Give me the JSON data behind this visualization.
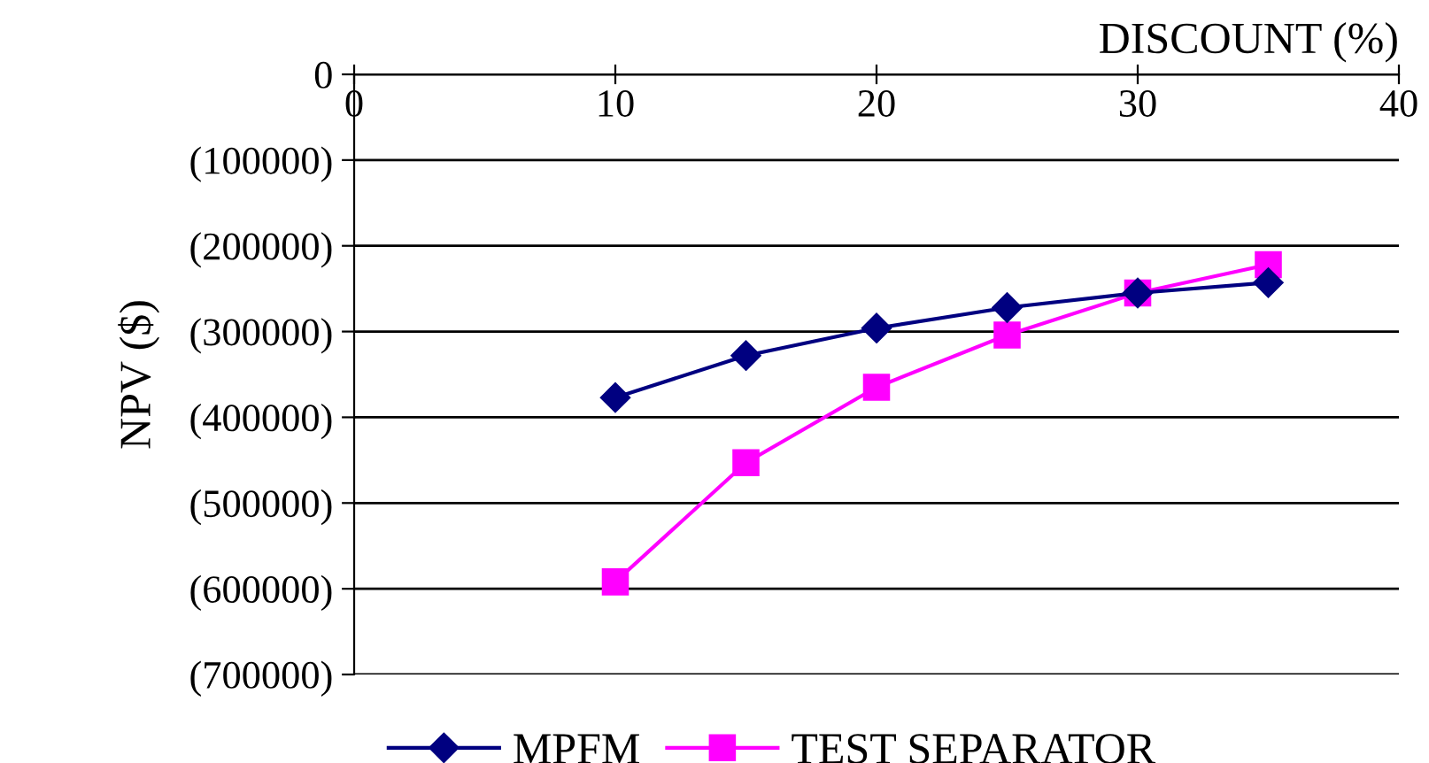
{
  "chart_data": {
    "type": "line",
    "xlabel": "DISCOUNT (%)",
    "ylabel": "NPV ($)",
    "x": [
      10,
      15,
      20,
      25,
      30,
      35
    ],
    "series": [
      {
        "name": "MPFM",
        "color": "#000080",
        "marker": "diamond",
        "values": [
          -377000,
          -328000,
          -296000,
          -272000,
          -255000,
          -243000
        ]
      },
      {
        "name": "TEST SEPARATOR",
        "color": "#ff00ff",
        "marker": "square",
        "values": [
          -592000,
          -453000,
          -365000,
          -304000,
          -255000,
          -222000
        ]
      }
    ],
    "xlim": [
      0,
      40
    ],
    "xticks": [
      0,
      10,
      20,
      30,
      40
    ],
    "ylim": [
      -700000,
      0
    ],
    "yticks": [
      0,
      {
        "value": -100000,
        "label": "(100000)"
      },
      {
        "value": -200000,
        "label": "(200000)"
      },
      {
        "value": -300000,
        "label": "(300000)"
      },
      {
        "value": -400000,
        "label": "(400000)"
      },
      {
        "value": -500000,
        "label": "(500000)"
      },
      {
        "value": -600000,
        "label": "(600000)"
      },
      {
        "value": -700000,
        "label": "(700000)"
      }
    ],
    "grid": "y",
    "legend": "bottom",
    "line_style": "solid"
  }
}
